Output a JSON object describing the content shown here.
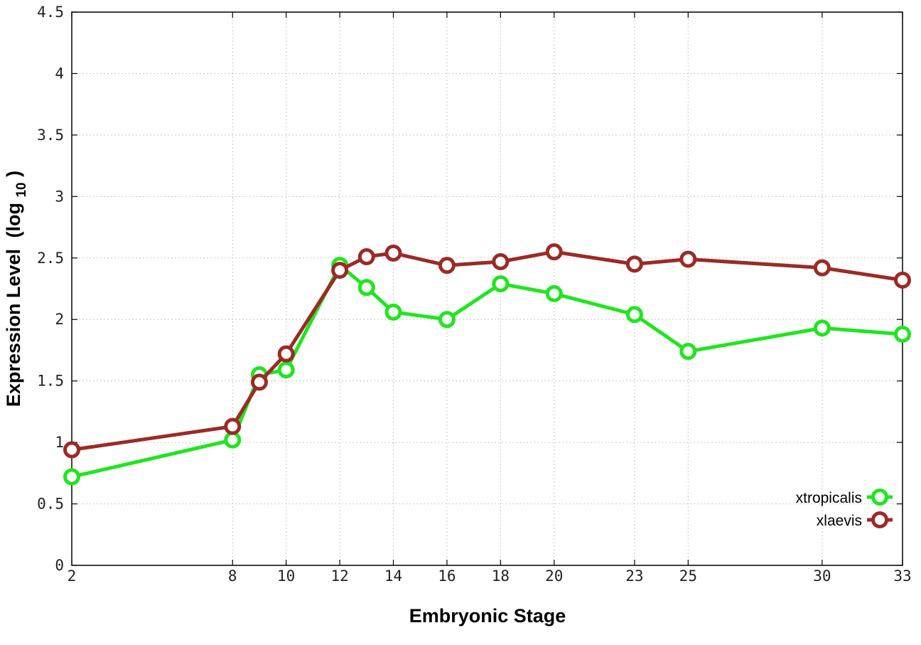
{
  "chart_data": {
    "type": "line",
    "xlabel": "Embryonic Stage",
    "ylabel": "Expression Level",
    "ylabel_sub": "10",
    "ylabel_prefix": "(log",
    "ylabel_suffix": ")",
    "x": [
      2,
      8,
      9,
      10,
      12,
      13,
      14,
      16,
      18,
      20,
      23,
      25,
      30,
      33
    ],
    "x_ticks": [
      2,
      8,
      10,
      12,
      14,
      16,
      18,
      20,
      23,
      25,
      30,
      33
    ],
    "y_ticks": [
      "0",
      "0.5",
      "1",
      "1.5",
      "2",
      "2.5",
      "3",
      "3.5",
      "4",
      "4.5"
    ],
    "xlim": [
      2,
      33
    ],
    "ylim": [
      0,
      4.5
    ],
    "grid": true,
    "legend_position": "bottom-right",
    "series": [
      {
        "name": "xtropicalis",
        "color": "#1ee61e",
        "values": [
          0.72,
          1.02,
          1.55,
          1.59,
          2.44,
          2.26,
          2.06,
          2.0,
          2.29,
          2.21,
          2.04,
          1.74,
          1.93,
          1.88
        ]
      },
      {
        "name": "xlaevis",
        "color": "#9b2a26",
        "values": [
          0.94,
          1.13,
          1.49,
          1.72,
          2.4,
          2.51,
          2.54,
          2.44,
          2.47,
          2.55,
          2.45,
          2.49,
          2.42,
          2.32
        ]
      }
    ]
  }
}
